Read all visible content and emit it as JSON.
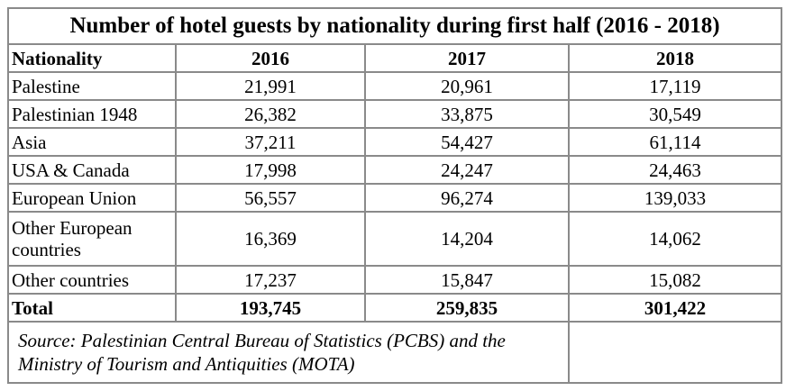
{
  "title": "Number of hotel guests by nationality during first half (2016 - 2018)",
  "headers": [
    "Nationality",
    "2016",
    "2017",
    "2018"
  ],
  "rows": [
    {
      "name": "Palestine",
      "v2016": "21,991",
      "v2017": "20,961",
      "v2018": "17,119"
    },
    {
      "name": "Palestinian 1948",
      "v2016": "26,382",
      "v2017": "33,875",
      "v2018": "30,549"
    },
    {
      "name": "Asia",
      "v2016": "37,211",
      "v2017": "54,427",
      "v2018": "61,114"
    },
    {
      "name": "USA & Canada",
      "v2016": "17,998",
      "v2017": "24,247",
      "v2018": "24,463"
    },
    {
      "name": "European Union",
      "v2016": "56,557",
      "v2017": "96,274",
      "v2018": "139,033"
    },
    {
      "name": "Other European countries",
      "v2016": "16,369",
      "v2017": "14,204",
      "v2018": "14,062"
    },
    {
      "name": "Other countries",
      "v2016": "17,237",
      "v2017": "15,847",
      "v2018": "15,082"
    }
  ],
  "total": {
    "name": "Total",
    "v2016": "193,745",
    "v2017": "259,835",
    "v2018": "301,422"
  },
  "source": "Source: Palestinian Central Bureau of Statistics (PCBS) and the Ministry of Tourism and Antiquities (MOTA)"
}
